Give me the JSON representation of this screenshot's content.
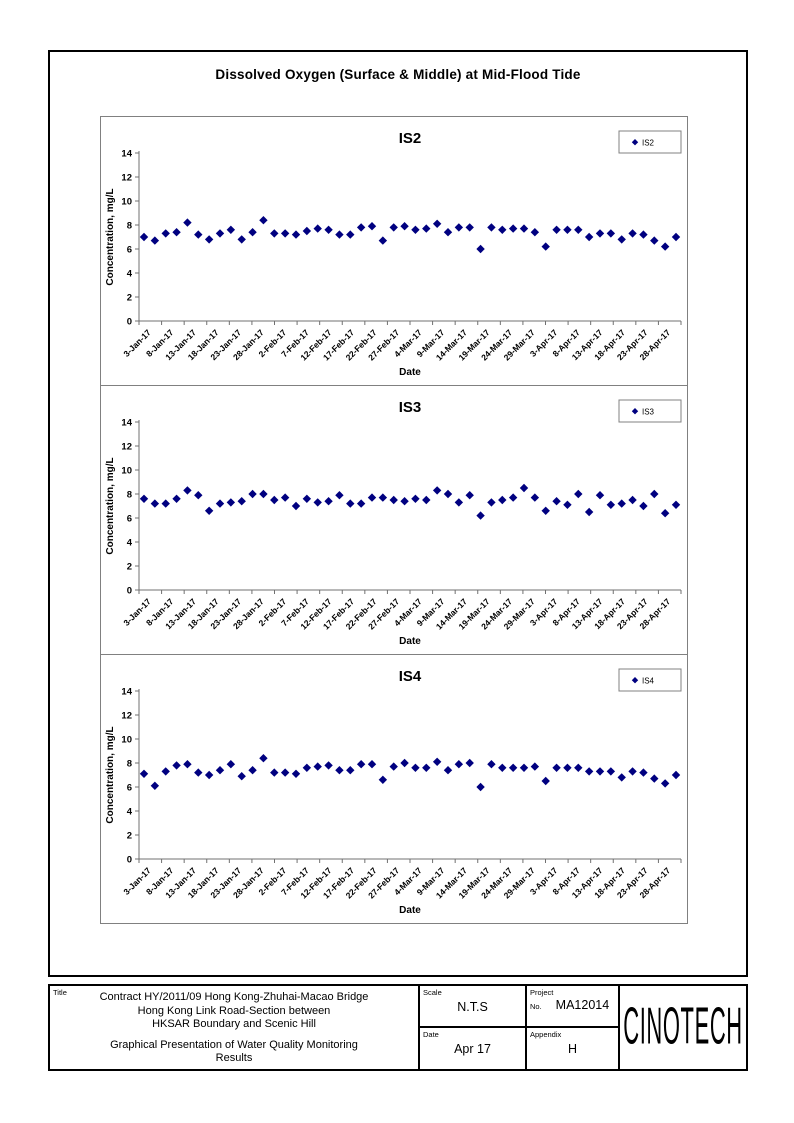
{
  "page": {
    "main_title": "Dissolved Oxygen (Surface & Middle) at Mid-Flood Tide"
  },
  "chart_data": [
    {
      "type": "scatter",
      "title": "IS2",
      "legend": "IS2",
      "xlabel": "Date",
      "ylabel": "Concentration, mg/L",
      "ylim": [
        0,
        14
      ],
      "yticks": [
        0,
        2,
        4,
        6,
        8,
        10,
        12,
        14
      ],
      "x_tick_labels": [
        "3-Jan-17",
        "8-Jan-17",
        "13-Jan-17",
        "18-Jan-17",
        "23-Jan-17",
        "28-Jan-17",
        "2-Feb-17",
        "7-Feb-17",
        "12-Feb-17",
        "17-Feb-17",
        "22-Feb-17",
        "27-Feb-17",
        "4-Mar-17",
        "9-Mar-17",
        "14-Mar-17",
        "19-Mar-17",
        "24-Mar-17",
        "29-Mar-17",
        "3-Apr-17",
        "8-Apr-17",
        "13-Apr-17",
        "18-Apr-17",
        "23-Apr-17",
        "28-Apr-17"
      ],
      "marker_color": "#000080",
      "values": [
        7.0,
        6.7,
        7.3,
        7.4,
        8.2,
        7.2,
        6.8,
        7.3,
        7.6,
        6.8,
        7.4,
        8.4,
        7.3,
        7.3,
        7.2,
        7.5,
        7.7,
        7.6,
        7.2,
        7.2,
        7.8,
        7.9,
        6.7,
        7.8,
        7.9,
        7.6,
        7.7,
        8.1,
        7.4,
        7.8,
        7.8,
        6.0,
        7.8,
        7.6,
        7.7,
        7.7,
        7.4,
        6.2,
        7.6,
        7.6,
        7.6,
        7.0,
        7.3,
        7.3,
        6.8,
        7.3,
        7.2,
        6.7,
        6.2,
        7.0
      ]
    },
    {
      "type": "scatter",
      "title": "IS3",
      "legend": "IS3",
      "xlabel": "Date",
      "ylabel": "Concentration, mg/L",
      "ylim": [
        0,
        14
      ],
      "yticks": [
        0,
        2,
        4,
        6,
        8,
        10,
        12,
        14
      ],
      "x_tick_labels": [
        "3-Jan-17",
        "8-Jan-17",
        "13-Jan-17",
        "18-Jan-17",
        "23-Jan-17",
        "28-Jan-17",
        "2-Feb-17",
        "7-Feb-17",
        "12-Feb-17",
        "17-Feb-17",
        "22-Feb-17",
        "27-Feb-17",
        "4-Mar-17",
        "9-Mar-17",
        "14-Mar-17",
        "19-Mar-17",
        "24-Mar-17",
        "29-Mar-17",
        "3-Apr-17",
        "8-Apr-17",
        "13-Apr-17",
        "18-Apr-17",
        "23-Apr-17",
        "28-Apr-17"
      ],
      "marker_color": "#000080",
      "values": [
        7.6,
        7.2,
        7.2,
        7.6,
        8.3,
        7.9,
        6.6,
        7.2,
        7.3,
        7.4,
        8.0,
        8.0,
        7.5,
        7.7,
        7.0,
        7.6,
        7.3,
        7.4,
        7.9,
        7.2,
        7.2,
        7.7,
        7.7,
        7.5,
        7.4,
        7.6,
        7.5,
        8.3,
        8.0,
        7.3,
        7.9,
        6.2,
        7.3,
        7.5,
        7.7,
        8.5,
        7.7,
        6.6,
        7.4,
        7.1,
        8.0,
        6.5,
        7.9,
        7.1,
        7.2,
        7.5,
        7.0,
        8.0,
        6.4,
        7.1
      ]
    },
    {
      "type": "scatter",
      "title": "IS4",
      "legend": "IS4",
      "xlabel": "Date",
      "ylabel": "Concentration, mg/L",
      "ylim": [
        0,
        14
      ],
      "yticks": [
        0,
        2,
        4,
        6,
        8,
        10,
        12,
        14
      ],
      "x_tick_labels": [
        "3-Jan-17",
        "8-Jan-17",
        "13-Jan-17",
        "18-Jan-17",
        "23-Jan-17",
        "28-Jan-17",
        "2-Feb-17",
        "7-Feb-17",
        "12-Feb-17",
        "17-Feb-17",
        "22-Feb-17",
        "27-Feb-17",
        "4-Mar-17",
        "9-Mar-17",
        "14-Mar-17",
        "19-Mar-17",
        "24-Mar-17",
        "29-Mar-17",
        "3-Apr-17",
        "8-Apr-17",
        "13-Apr-17",
        "18-Apr-17",
        "23-Apr-17",
        "28-Apr-17"
      ],
      "marker_color": "#000080",
      "values": [
        7.1,
        6.1,
        7.3,
        7.8,
        7.9,
        7.2,
        7.0,
        7.4,
        7.9,
        6.9,
        7.4,
        8.4,
        7.2,
        7.2,
        7.1,
        7.6,
        7.7,
        7.8,
        7.4,
        7.4,
        7.9,
        7.9,
        6.6,
        7.7,
        8.0,
        7.6,
        7.6,
        8.1,
        7.4,
        7.9,
        8.0,
        6.0,
        7.9,
        7.6,
        7.6,
        7.6,
        7.7,
        6.5,
        7.6,
        7.6,
        7.6,
        7.3,
        7.3,
        7.3,
        6.8,
        7.3,
        7.2,
        6.7,
        6.3,
        7.0
      ]
    }
  ],
  "title_block": {
    "title_label": "Title",
    "contract_lines": [
      "Contract HY/2011/09 Hong Kong-Zhuhai-Macao Bridge",
      "Hong Kong Link Road-Section between",
      "HKSAR Boundary and Scenic Hill"
    ],
    "description_lines": [
      "Graphical Presentation of Water Quality Monitoring",
      "Results"
    ],
    "scale_label": "Scale",
    "scale_value": "N.T.S",
    "project_label": "Project",
    "project_no_label": "No.",
    "project_value": "MA12014",
    "date_label": "Date",
    "date_value": "Apr 17",
    "appendix_label": "Appendix",
    "appendix_value": "H",
    "logo_text": "CINOTECH"
  }
}
